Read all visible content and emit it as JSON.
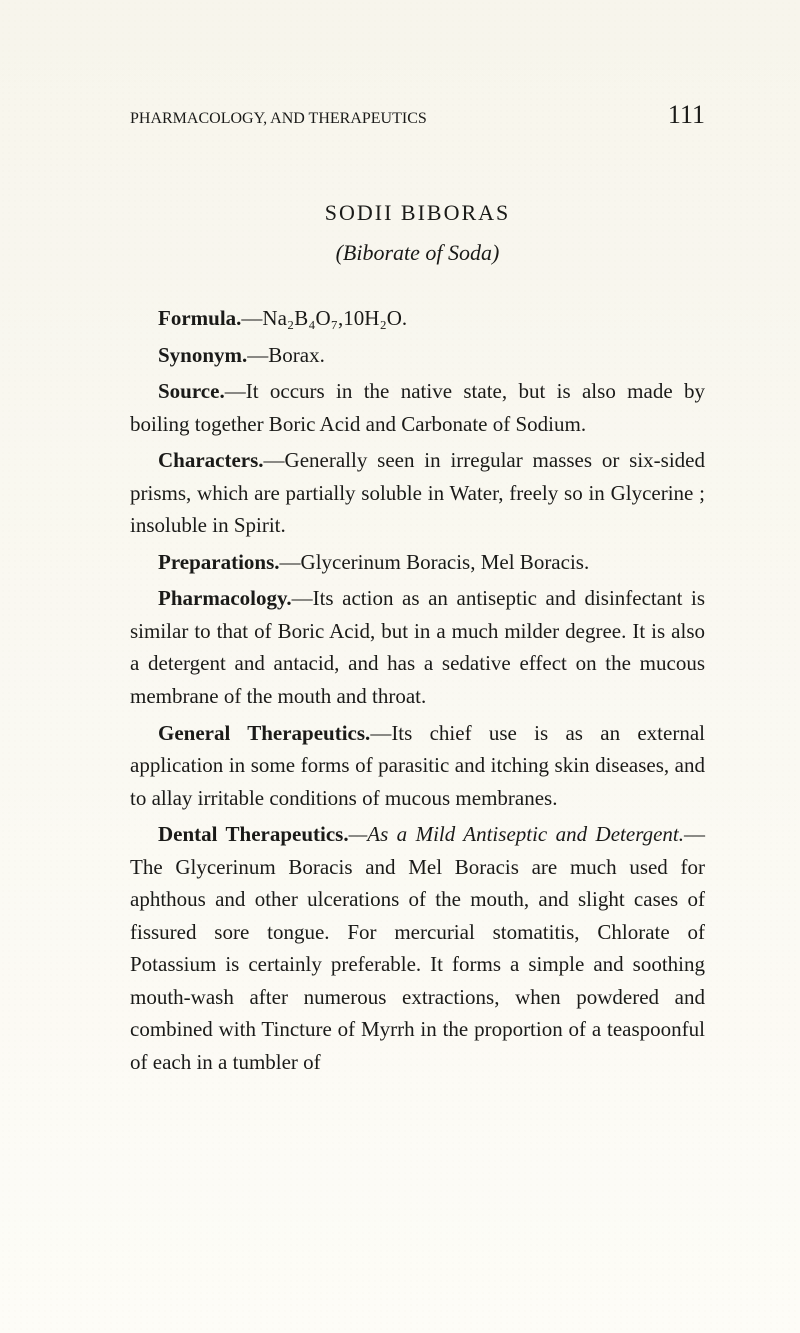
{
  "page": {
    "running_title": "PHARMACOLOGY, AND THERAPEUTICS",
    "number": "111"
  },
  "heading": {
    "title": "SODII BIBORAS",
    "subtitle": "(Biborate of Soda)"
  },
  "entries": {
    "formula": {
      "label": "Formula.",
      "rest": "—Na₂B₄O₇,10H₂O."
    },
    "synonym": {
      "label": "Synonym.",
      "rest": "—Borax."
    },
    "source": {
      "label": "Source.",
      "rest": "—It occurs in the native state, but is also made by boiling together Boric Acid and Carbonate of Sodium."
    },
    "characters": {
      "label": "Characters.",
      "rest": "—Generally seen in irregular masses or six-sided prisms, which are partially soluble in Water, freely so in Glycerine ; insoluble in Spirit."
    },
    "preparations": {
      "label": "Preparations.",
      "rest": "—Glycerinum Boracis, Mel Boracis."
    },
    "pharmacology": {
      "label": "Pharmacology.",
      "rest": "—Its action as an antiseptic and disinfectant is similar to that of Boric Acid, but in a much milder degree. It is also a detergent and antacid, and has a sedative effect on the mucous membrane of the mouth and throat."
    },
    "general": {
      "label": "General Therapeutics.",
      "rest": "—Its chief use is as an external application in some forms of parasitic and itching skin diseases, and to allay irritable conditions of mucous membranes."
    },
    "dental": {
      "label": "Dental Therapeutics.",
      "em": "—As a Mild Antiseptic and Detergent.",
      "rest": "—The Glycerinum Boracis and Mel Boracis are much used for aphthous and other ulcerations of the mouth, and slight cases of fissured sore tongue. For mercurial stomatitis, Chlorate of Potassium is certainly preferable. It forms a simple and soothing mouth-wash after numerous extractions, when powdered and combined with Tincture of Myrrh in the proportion of a teaspoonful of each in a tumbler of"
    }
  }
}
